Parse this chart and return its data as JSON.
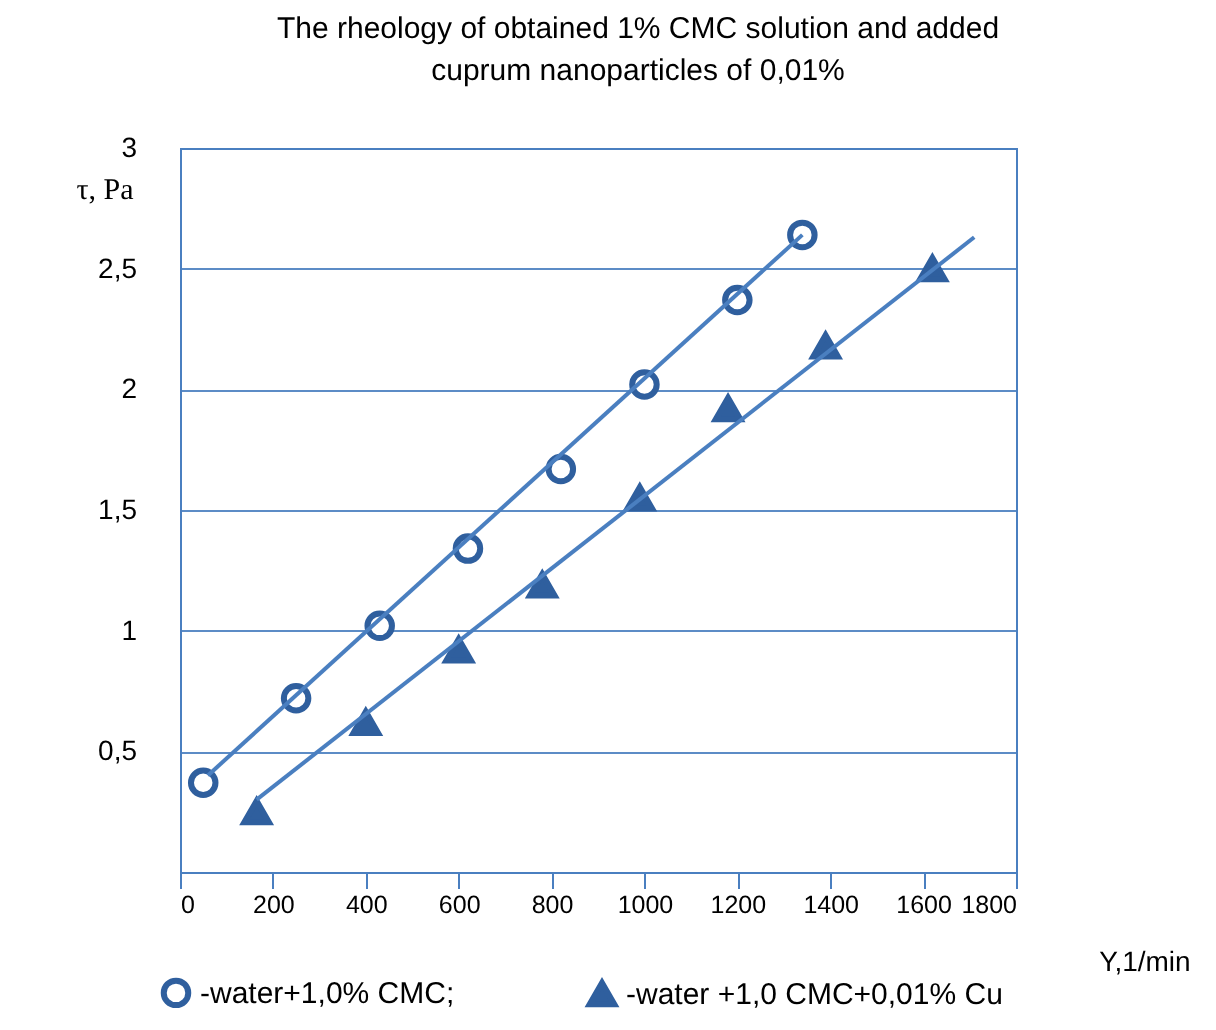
{
  "chart_data": {
    "type": "scatter",
    "title": "The rheology of obtained 1% CMC solution and added cuprum nanoparticles of 0,01%",
    "xlabel": "Y,1/min",
    "ylabel": "τ, Pa",
    "series": [
      {
        "name": "-water+1,0% CMC;",
        "color": "#2f5f9e",
        "marker": "circle",
        "x": [
          50,
          250,
          430,
          620,
          820,
          1000,
          1200,
          1340
        ],
        "values": [
          0.37,
          0.72,
          1.02,
          1.34,
          1.67,
          2.02,
          2.37,
          2.64
        ]
      },
      {
        "name": "-water +1,0 CMC+0,01% Cu",
        "color": "#2f5f9e",
        "marker": "triangle",
        "x": [
          165,
          400,
          600,
          780,
          990,
          1180,
          1390,
          1620
        ],
        "values": [
          0.25,
          0.62,
          0.92,
          1.19,
          1.55,
          1.92,
          2.18,
          2.5
        ]
      },
      {
        "type": "line",
        "color": "#4a7fc0",
        "x": [
          60,
          1340
        ],
        "values": [
          0.4,
          2.64
        ]
      },
      {
        "type": "line",
        "color": "#4a7fc0",
        "x": [
          165,
          1710
        ],
        "values": [
          0.3,
          2.63
        ]
      }
    ],
    "xlim": [
      0,
      1800
    ],
    "xticks": [
      0,
      200,
      400,
      600,
      800,
      1000,
      1200,
      1400,
      1600,
      1800
    ],
    "ylim": [
      0,
      3
    ],
    "yticks": [
      {
        "value": 0,
        "label": null
      },
      {
        "value": 0.5,
        "label": "0,5"
      },
      1,
      {
        "value": 1.5,
        "label": "1,5"
      },
      2,
      {
        "value": 2.5,
        "label": "2,5"
      },
      3
    ],
    "grid": "y",
    "legend": "bottom"
  }
}
